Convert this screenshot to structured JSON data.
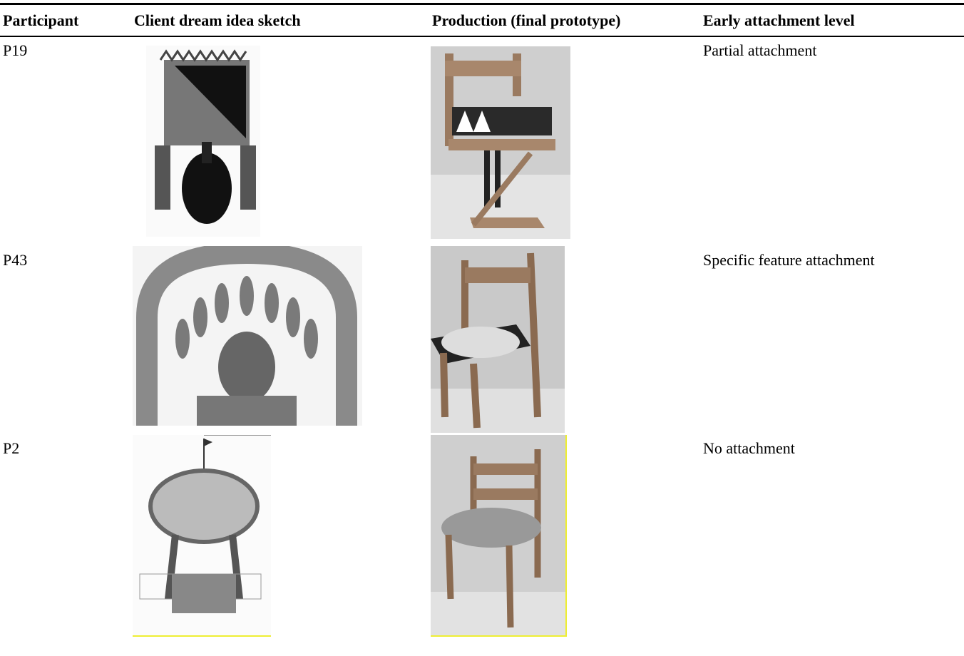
{
  "table": {
    "header": [
      "Participant",
      "Client dream idea sketch",
      "Production (final prototype)",
      "Early attachment level"
    ],
    "rows": [
      [
        "P19",
        "Partial attachment"
      ],
      [
        "P43",
        "Specific feature attachment"
      ],
      [
        "P2",
        "No attachment"
      ]
    ]
  }
}
